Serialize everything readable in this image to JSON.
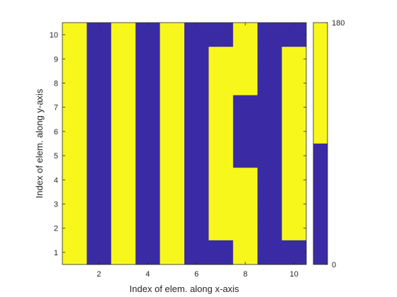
{
  "chart_data": {
    "type": "heatmap",
    "xlabel": "Index of elem. along x-axis",
    "ylabel": "Index of elem. along y-axis",
    "x_ticks": [
      2,
      4,
      6,
      8,
      10
    ],
    "y_ticks": [
      1,
      2,
      3,
      4,
      5,
      6,
      7,
      8,
      9,
      10
    ],
    "x": [
      1,
      2,
      3,
      4,
      5,
      6,
      7,
      8,
      9,
      10
    ],
    "y": [
      1,
      2,
      3,
      4,
      5,
      6,
      7,
      8,
      9,
      10
    ],
    "xlim": [
      0.5,
      10.5
    ],
    "ylim": [
      0.5,
      10.5
    ],
    "values_rows_from_top": [
      [
        180,
        0,
        180,
        0,
        180,
        0,
        0,
        180,
        0,
        0
      ],
      [
        180,
        0,
        180,
        0,
        180,
        0,
        180,
        180,
        0,
        180
      ],
      [
        180,
        0,
        180,
        0,
        180,
        0,
        180,
        180,
        0,
        180
      ],
      [
        180,
        0,
        180,
        0,
        180,
        0,
        180,
        0,
        0,
        180
      ],
      [
        180,
        0,
        180,
        0,
        180,
        0,
        180,
        0,
        0,
        180
      ],
      [
        180,
        0,
        180,
        0,
        180,
        0,
        180,
        0,
        0,
        180
      ],
      [
        180,
        0,
        180,
        0,
        180,
        0,
        180,
        180,
        0,
        180
      ],
      [
        180,
        0,
        180,
        0,
        180,
        0,
        180,
        180,
        0,
        180
      ],
      [
        180,
        0,
        180,
        0,
        180,
        0,
        180,
        180,
        0,
        180
      ],
      [
        180,
        0,
        180,
        0,
        180,
        0,
        0,
        180,
        0,
        0
      ]
    ],
    "colormap": {
      "low_color": "#3a2ba5",
      "high_color": "#f7f71c"
    },
    "colorbar": {
      "min": 0,
      "max": 180,
      "tick_labels": [
        "0",
        "180"
      ],
      "threshold": 90
    }
  }
}
